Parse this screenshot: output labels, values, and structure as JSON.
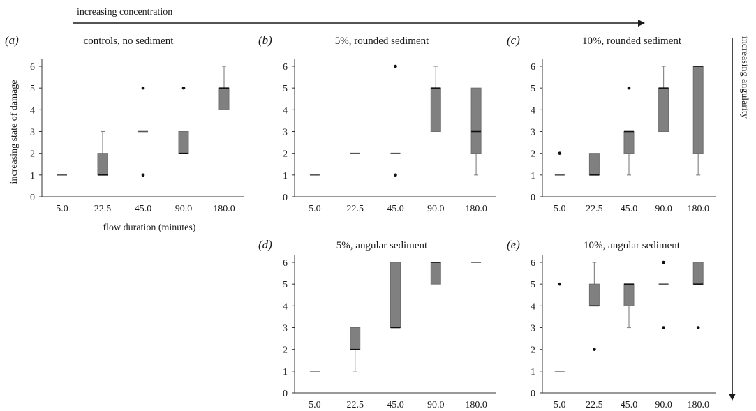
{
  "annotations": {
    "top": "increasing concentration",
    "right": "increasing angularity"
  },
  "colors": {
    "box_fill": "#808080",
    "box_edge": "#6f6f6f",
    "whisker": "#8a8a8a",
    "median": "#111111",
    "axis": "#333333"
  },
  "chart_data": [
    {
      "type": "box",
      "panel": "(a)",
      "title": "controls, no sediment",
      "xlabel": "flow duration (minutes)",
      "ylabel": "increasing state of damage",
      "categories": [
        "5.0",
        "22.5",
        "45.0",
        "90.0",
        "180.0"
      ],
      "ylim": [
        0,
        6
      ],
      "yticks": [
        0,
        1,
        2,
        3,
        4,
        5,
        6
      ],
      "boxes": [
        {
          "q1": 1,
          "median": 1,
          "q3": 1,
          "whisker_low": 1,
          "whisker_high": 1,
          "outliers": []
        },
        {
          "q1": 1,
          "median": 1,
          "q3": 2,
          "whisker_low": 1,
          "whisker_high": 3,
          "outliers": []
        },
        {
          "q1": 3,
          "median": 3,
          "q3": 3,
          "whisker_low": 3,
          "whisker_high": 3,
          "outliers": [
            5,
            1
          ]
        },
        {
          "q1": 2,
          "median": 2,
          "q3": 3,
          "whisker_low": 2,
          "whisker_high": 3,
          "outliers": [
            5
          ]
        },
        {
          "q1": 4,
          "median": 5,
          "q3": 5,
          "whisker_low": 4,
          "whisker_high": 6,
          "outliers": []
        }
      ]
    },
    {
      "type": "box",
      "panel": "(b)",
      "title": "5%, rounded sediment",
      "xlabel": "",
      "ylabel": "",
      "categories": [
        "5.0",
        "22.5",
        "45.0",
        "90.0",
        "180.0"
      ],
      "ylim": [
        0,
        6
      ],
      "yticks": [
        0,
        1,
        2,
        3,
        4,
        5,
        6
      ],
      "boxes": [
        {
          "q1": 1,
          "median": 1,
          "q3": 1,
          "whisker_low": 1,
          "whisker_high": 1,
          "outliers": []
        },
        {
          "q1": 2,
          "median": 2,
          "q3": 2,
          "whisker_low": 2,
          "whisker_high": 2,
          "outliers": []
        },
        {
          "q1": 2,
          "median": 2,
          "q3": 2,
          "whisker_low": 2,
          "whisker_high": 2,
          "outliers": [
            6,
            1
          ]
        },
        {
          "q1": 3,
          "median": 5,
          "q3": 5,
          "whisker_low": 3,
          "whisker_high": 6,
          "outliers": []
        },
        {
          "q1": 2,
          "median": 3,
          "q3": 5,
          "whisker_low": 1,
          "whisker_high": 5,
          "outliers": []
        }
      ]
    },
    {
      "type": "box",
      "panel": "(c)",
      "title": "10%, rounded sediment",
      "xlabel": "",
      "ylabel": "",
      "categories": [
        "5.0",
        "22.5",
        "45.0",
        "90.0",
        "180.0"
      ],
      "ylim": [
        0,
        6
      ],
      "yticks": [
        0,
        1,
        2,
        3,
        4,
        5,
        6
      ],
      "boxes": [
        {
          "q1": 1,
          "median": 1,
          "q3": 1,
          "whisker_low": 1,
          "whisker_high": 1,
          "outliers": [
            2
          ]
        },
        {
          "q1": 1,
          "median": 1,
          "q3": 2,
          "whisker_low": 1,
          "whisker_high": 2,
          "outliers": []
        },
        {
          "q1": 2,
          "median": 3,
          "q3": 3,
          "whisker_low": 1,
          "whisker_high": 3,
          "outliers": [
            5
          ]
        },
        {
          "q1": 3,
          "median": 5,
          "q3": 5,
          "whisker_low": 3,
          "whisker_high": 6,
          "outliers": []
        },
        {
          "q1": 2,
          "median": 6,
          "q3": 6,
          "whisker_low": 1,
          "whisker_high": 6,
          "outliers": []
        }
      ]
    },
    {
      "type": "box",
      "panel": "(d)",
      "title": "5%, angular sediment",
      "xlabel": "",
      "ylabel": "",
      "categories": [
        "5.0",
        "22.5",
        "45.0",
        "90.0",
        "180.0"
      ],
      "ylim": [
        0,
        6
      ],
      "yticks": [
        0,
        1,
        2,
        3,
        4,
        5,
        6
      ],
      "boxes": [
        {
          "q1": 1,
          "median": 1,
          "q3": 1,
          "whisker_low": 1,
          "whisker_high": 1,
          "outliers": []
        },
        {
          "q1": 2,
          "median": 2,
          "q3": 3,
          "whisker_low": 1,
          "whisker_high": 3,
          "outliers": []
        },
        {
          "q1": 3,
          "median": 3,
          "q3": 6,
          "whisker_low": 3,
          "whisker_high": 6,
          "outliers": []
        },
        {
          "q1": 5,
          "median": 6,
          "q3": 6,
          "whisker_low": 5,
          "whisker_high": 6,
          "outliers": []
        },
        {
          "q1": 6,
          "median": 6,
          "q3": 6,
          "whisker_low": 6,
          "whisker_high": 6,
          "outliers": []
        }
      ]
    },
    {
      "type": "box",
      "panel": "(e)",
      "title": "10%, angular sediment",
      "xlabel": "",
      "ylabel": "",
      "categories": [
        "5.0",
        "22.5",
        "45.0",
        "90.0",
        "180.0"
      ],
      "ylim": [
        0,
        6
      ],
      "yticks": [
        0,
        1,
        2,
        3,
        4,
        5,
        6
      ],
      "boxes": [
        {
          "q1": 1,
          "median": 1,
          "q3": 1,
          "whisker_low": 1,
          "whisker_high": 1,
          "outliers": [
            5
          ]
        },
        {
          "q1": 4,
          "median": 4,
          "q3": 5,
          "whisker_low": 4,
          "whisker_high": 6,
          "outliers": [
            2
          ]
        },
        {
          "q1": 4,
          "median": 5,
          "q3": 5,
          "whisker_low": 3,
          "whisker_high": 5,
          "outliers": []
        },
        {
          "q1": 5,
          "median": 5,
          "q3": 5,
          "whisker_low": 5,
          "whisker_high": 5,
          "outliers": [
            6,
            3
          ]
        },
        {
          "q1": 5,
          "median": 5,
          "q3": 6,
          "whisker_low": 5,
          "whisker_high": 6,
          "outliers": [
            3
          ]
        }
      ]
    }
  ]
}
